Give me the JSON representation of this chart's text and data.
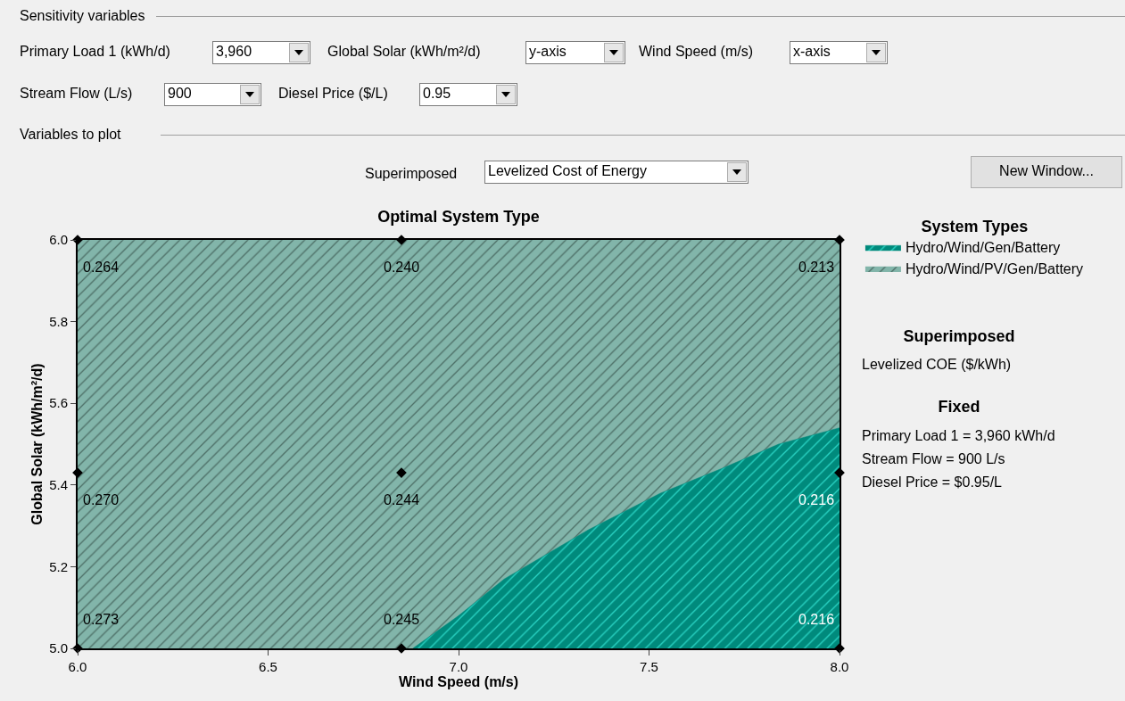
{
  "chart_data": {
    "type": "area",
    "title": "Optimal System Type",
    "xlabel": "Wind Speed (m/s)",
    "ylabel": "Global Solar (kWh/m²/d)",
    "legend_title": "System Types",
    "legend": "right",
    "xlim": [
      6.0,
      8.0
    ],
    "xticks": [
      {
        "value": 6,
        "label": "6.0"
      },
      6.5,
      {
        "value": 7,
        "label": "7.0"
      },
      7.5,
      {
        "value": 8,
        "label": "8.0"
      }
    ],
    "ylim": [
      5.0,
      6.0
    ],
    "yticks": [
      {
        "value": 5,
        "label": "5.0"
      },
      5.2,
      5.4,
      5.6,
      5.8,
      {
        "value": 6,
        "label": "6.0"
      }
    ],
    "series": [
      {
        "name": "Hydro/Wind/Gen/Battery",
        "color": "#008a7c",
        "x": [
          6.88,
          7.0,
          7.12,
          7.34,
          7.53,
          7.69,
          7.84,
          8.0
        ],
        "values": [
          5.0,
          5.08,
          5.17,
          5.29,
          5.38,
          5.44,
          5.5,
          5.54
        ]
      },
      {
        "name": "Hydro/Wind/PV/Gen/Battery",
        "color": "#82b5aa",
        "x": [
          6.0,
          8.0
        ],
        "values": [
          6.0,
          6.0
        ]
      },
      {
        "type": "scatter",
        "marker": "diamond",
        "color": "#000000",
        "x": [
          6.0,
          6.85,
          8.0,
          6.0,
          6.85,
          8.0,
          6.0,
          6.85,
          8.0
        ],
        "values": [
          6.0,
          6.0,
          6.0,
          5.43,
          5.43,
          5.43,
          5.0,
          5.0,
          5.0
        ]
      }
    ],
    "annotations": [
      {
        "text": "0.264",
        "x": 6.0,
        "y": 6.0
      },
      {
        "text": "0.240",
        "x": 6.85,
        "y": 6.0
      },
      {
        "text": "0.213",
        "x": 8.0,
        "y": 6.0
      },
      {
        "text": "0.270",
        "x": 6.0,
        "y": 5.43
      },
      {
        "text": "0.244",
        "x": 6.85,
        "y": 5.43
      },
      {
        "text": "0.216",
        "x": 8.0,
        "y": 5.43
      },
      {
        "text": "0.273",
        "x": 6.0,
        "y": 5.0
      },
      {
        "text": "0.245",
        "x": 6.85,
        "y": 5.0
      },
      {
        "text": "0.216",
        "x": 8.0,
        "y": 5.0
      },
      "Sensitivity variables",
      "Primary Load 1 (kWh/d)",
      "3,960",
      "Global Solar (kWh/m²/d)",
      "y-axis",
      "Wind Speed (m/s)",
      "x-axis",
      "Stream Flow (L/s)",
      "900",
      "Diesel Price ($/L)",
      "0.95",
      "Variables to plot",
      "Superimposed",
      "Levelized Cost of Energy",
      "New Window...",
      "Superimposed",
      "Levelized COE ($/kWh)",
      "Fixed",
      "Primary Load 1 = 3,960 kWh/d",
      "Stream Flow = 900 L/s",
      "Diesel Price = $0.95/L"
    ]
  }
}
